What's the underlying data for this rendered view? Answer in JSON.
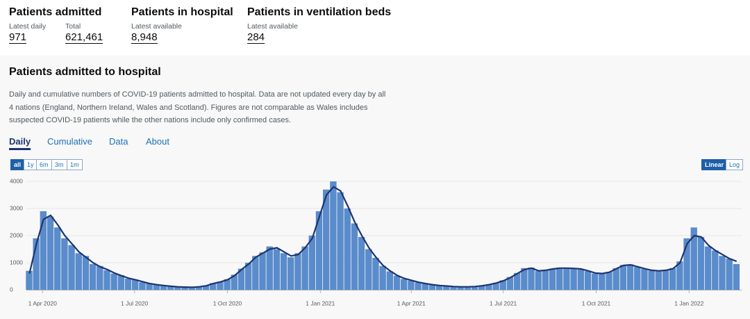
{
  "summary": [
    {
      "title": "Patients admitted",
      "metrics": [
        {
          "label": "Latest daily",
          "value": "971"
        },
        {
          "label": "Total",
          "value": "621,461"
        }
      ]
    },
    {
      "title": "Patients in hospital",
      "metrics": [
        {
          "label": "Latest available",
          "value": "8,948"
        }
      ]
    },
    {
      "title": "Patients in ventilation beds",
      "metrics": [
        {
          "label": "Latest available",
          "value": "284"
        }
      ]
    }
  ],
  "card": {
    "title": "Patients admitted to hospital",
    "description": "Daily and cumulative numbers of COVID-19 patients admitted to hospital. Data are not updated every day by all 4 nations (England, Northern Ireland, Wales and Scotland). Figures are not comparable as Wales includes suspected COVID-19 patients while the other nations include only confirmed cases.",
    "tabs": [
      "Daily",
      "Cumulative",
      "Data",
      "About"
    ],
    "range_buttons": [
      "all",
      "1y",
      "6m",
      "3m",
      "1m"
    ],
    "scale_buttons": [
      "Linear",
      "Log"
    ]
  },
  "chart_data": {
    "type": "bar",
    "grid": true,
    "x": [
      "2020-03-19",
      "2020-03-26",
      "2020-04-02",
      "2020-04-09",
      "2020-04-16",
      "2020-04-23",
      "2020-04-30",
      "2020-05-07",
      "2020-05-14",
      "2020-05-21",
      "2020-05-28",
      "2020-06-04",
      "2020-06-11",
      "2020-06-18",
      "2020-06-25",
      "2020-07-02",
      "2020-07-09",
      "2020-07-16",
      "2020-07-23",
      "2020-07-30",
      "2020-08-06",
      "2020-08-13",
      "2020-08-20",
      "2020-08-27",
      "2020-09-03",
      "2020-09-10",
      "2020-09-17",
      "2020-09-24",
      "2020-10-01",
      "2020-10-08",
      "2020-10-15",
      "2020-10-22",
      "2020-10-29",
      "2020-11-05",
      "2020-11-12",
      "2020-11-19",
      "2020-11-26",
      "2020-12-03",
      "2020-12-10",
      "2020-12-17",
      "2020-12-24",
      "2020-12-31",
      "2021-01-07",
      "2021-01-14",
      "2021-01-21",
      "2021-01-28",
      "2021-02-04",
      "2021-02-11",
      "2021-02-18",
      "2021-02-25",
      "2021-03-04",
      "2021-03-11",
      "2021-03-18",
      "2021-03-25",
      "2021-04-01",
      "2021-04-08",
      "2021-04-15",
      "2021-04-22",
      "2021-04-29",
      "2021-05-06",
      "2021-05-13",
      "2021-05-20",
      "2021-05-27",
      "2021-06-03",
      "2021-06-10",
      "2021-06-17",
      "2021-06-24",
      "2021-07-01",
      "2021-07-08",
      "2021-07-15",
      "2021-07-22",
      "2021-07-29",
      "2021-08-05",
      "2021-08-12",
      "2021-08-19",
      "2021-08-26",
      "2021-09-02",
      "2021-09-09",
      "2021-09-16",
      "2021-09-23",
      "2021-09-30",
      "2021-10-07",
      "2021-10-14",
      "2021-10-21",
      "2021-10-28",
      "2021-11-04",
      "2021-11-11",
      "2021-11-18",
      "2021-11-25",
      "2021-12-02",
      "2021-12-09",
      "2021-12-16",
      "2021-12-23",
      "2021-12-30",
      "2022-01-06",
      "2022-01-13",
      "2022-01-20",
      "2022-01-27",
      "2022-02-03",
      "2022-02-10",
      "2022-02-17"
    ],
    "series": [
      {
        "type": "bar",
        "color": "#5a8ccb",
        "values": [
          700,
          1900,
          2900,
          2700,
          2300,
          1900,
          1650,
          1350,
          1250,
          950,
          880,
          720,
          600,
          540,
          410,
          380,
          280,
          240,
          180,
          170,
          120,
          105,
          95,
          100,
          115,
          160,
          250,
          300,
          390,
          560,
          780,
          1000,
          1250,
          1380,
          1600,
          1500,
          1350,
          1200,
          1350,
          1600,
          2000,
          2900,
          3700,
          4000,
          3600,
          3000,
          2450,
          1950,
          1500,
          1180,
          880,
          680,
          520,
          400,
          340,
          270,
          220,
          185,
          150,
          135,
          115,
          105,
          110,
          125,
          160,
          200,
          260,
          350,
          470,
          620,
          800,
          820,
          690,
          730,
          780,
          820,
          810,
          780,
          760,
          690,
          600,
          590,
          660,
          800,
          920,
          940,
          840,
          770,
          710,
          690,
          730,
          800,
          1050,
          1900,
          2300,
          1950,
          1600,
          1450,
          1250,
          1150,
          950
        ]
      },
      {
        "type": "line",
        "color": "#1d3470",
        "values": [
          600,
          1700,
          2600,
          2750,
          2400,
          2000,
          1700,
          1400,
          1200,
          1000,
          850,
          750,
          620,
          520,
          430,
          370,
          300,
          230,
          190,
          160,
          130,
          110,
          100,
          95,
          110,
          150,
          230,
          290,
          370,
          520,
          750,
          950,
          1200,
          1350,
          1500,
          1550,
          1400,
          1250,
          1300,
          1550,
          1900,
          2700,
          3500,
          3800,
          3650,
          3100,
          2500,
          2000,
          1550,
          1200,
          900,
          700,
          530,
          420,
          350,
          280,
          230,
          190,
          160,
          140,
          120,
          110,
          110,
          120,
          150,
          190,
          250,
          330,
          450,
          600,
          750,
          800,
          700,
          720,
          770,
          800,
          800,
          790,
          770,
          700,
          620,
          600,
          650,
          780,
          900,
          920,
          850,
          780,
          720,
          700,
          720,
          780,
          1000,
          1700,
          2000,
          1950,
          1650,
          1450,
          1300,
          1150,
          1050
        ]
      }
    ],
    "xlim": [
      "2020-03-16",
      "2022-02-22"
    ],
    "xticks": [
      {
        "value": "2020-04-01",
        "label": "1 Apr 2020"
      },
      {
        "value": "2020-07-01",
        "label": "1 Jul 2020"
      },
      {
        "value": "2020-10-01",
        "label": "1 Oct 2020"
      },
      {
        "value": "2021-01-01",
        "label": "1 Jan 2021"
      },
      {
        "value": "2021-04-01",
        "label": "1 Apr 2021"
      },
      {
        "value": "2021-07-01",
        "label": "1 Jul 2021"
      },
      {
        "value": "2021-10-01",
        "label": "1 Oct 2021"
      },
      {
        "value": "2022-01-01",
        "label": "1 Jan 2022"
      }
    ],
    "ylim": [
      0,
      4000
    ],
    "yticks": [
      0,
      1000,
      2000,
      3000,
      4000
    ]
  }
}
